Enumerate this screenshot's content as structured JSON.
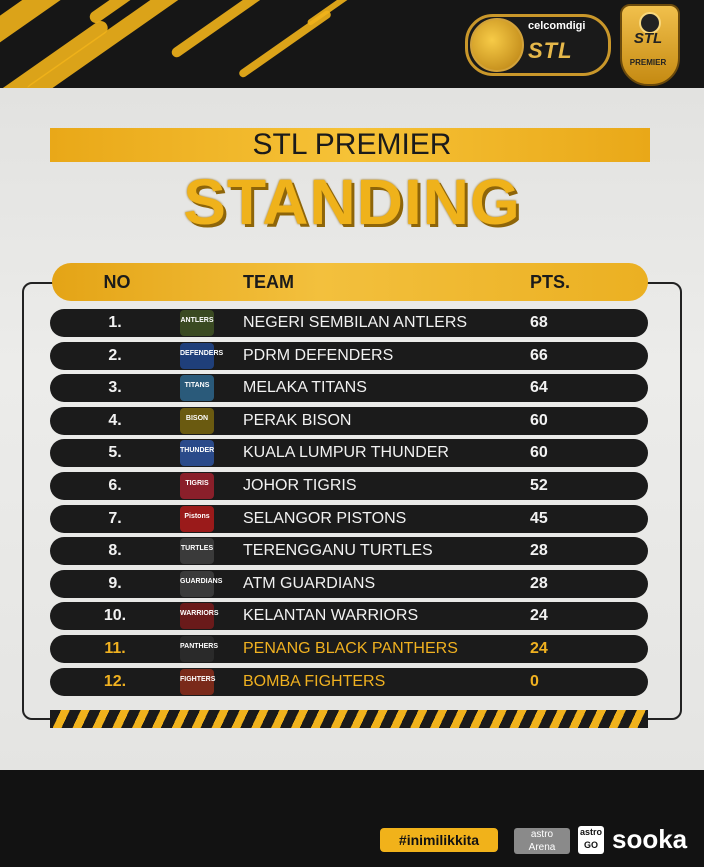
{
  "header_logos": {
    "brand": "celcomdigi",
    "league_logo": "STL",
    "badge_logo": "STL",
    "badge_label": "PREMIER"
  },
  "title": {
    "subtitle": "STL PREMIER",
    "main": "STANDING"
  },
  "table": {
    "columns": {
      "no": "NO",
      "team": "TEAM",
      "pts": "PTS."
    },
    "rows": [
      {
        "no": "1.",
        "team": "NEGERI SEMBILAN ANTLERS",
        "pts": "68",
        "logo_color": "#3a4a22",
        "logo_text": "ANTLERS"
      },
      {
        "no": "2.",
        "team": "PDRM DEFENDERS",
        "pts": "66",
        "logo_color": "#1f3f7a",
        "logo_text": "DEFENDERS"
      },
      {
        "no": "3.",
        "team": "MELAKA TITANS",
        "pts": "64",
        "logo_color": "#2a5a7a",
        "logo_text": "TITANS"
      },
      {
        "no": "4.",
        "team": "PERAK BISON",
        "pts": "60",
        "logo_color": "#6a5a10",
        "logo_text": "BISON"
      },
      {
        "no": "5.",
        "team": "KUALA LUMPUR THUNDER",
        "pts": "60",
        "logo_color": "#2a4a8a",
        "logo_text": "THUNDER"
      },
      {
        "no": "6.",
        "team": "JOHOR TIGRIS",
        "pts": "52",
        "logo_color": "#8a1f2a",
        "logo_text": "TIGRIS"
      },
      {
        "no": "7.",
        "team": "SELANGOR PISTONS",
        "pts": "45",
        "logo_color": "#9a1a1a",
        "logo_text": "Pistons"
      },
      {
        "no": "8.",
        "team": "TERENGGANU TURTLES",
        "pts": "28",
        "logo_color": "#3a3a3a",
        "logo_text": "TURTLES"
      },
      {
        "no": "9.",
        "team": "ATM GUARDIANS",
        "pts": "28",
        "logo_color": "#3a3a3a",
        "logo_text": "GUARDIANS"
      },
      {
        "no": "10.",
        "team": "KELANTAN WARRIORS",
        "pts": "24",
        "logo_color": "#6a1a1a",
        "logo_text": "WARRIORS"
      },
      {
        "no": "11.",
        "team": "PENANG BLACK PANTHERS",
        "pts": "24",
        "logo_color": "#2a2a2a",
        "logo_text": "PANTHERS",
        "highlight": true
      },
      {
        "no": "12.",
        "team": "BOMBA FIGHTERS",
        "pts": "0",
        "logo_color": "#7a2a1a",
        "logo_text": "FIGHTERS",
        "highlight": true
      }
    ]
  },
  "footer": {
    "hashtag": "#inimilikkita",
    "astro_arena_top": "astro",
    "astro_arena_bottom": "Arena",
    "astro_go_top": "astro",
    "astro_go_bottom": "GO",
    "sooka": "sooka"
  },
  "colors": {
    "accent": "#f1b21a",
    "row_bg": "#1b1b1b",
    "highlight_text": "#f0b120"
  }
}
